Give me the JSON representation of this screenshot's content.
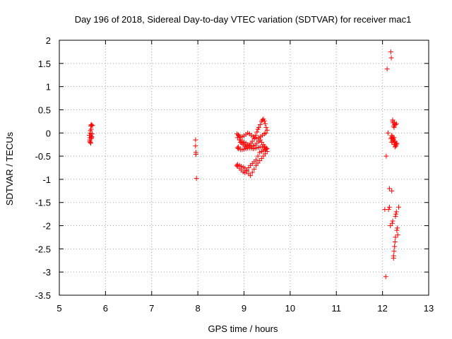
{
  "chart_data": {
    "type": "scatter",
    "title": "Day 196 of 2018, Sidereal Day-to-day VTEC variation (SDTVAR) for receiver mac1",
    "xlabel": "GPS time / hours",
    "ylabel": "SDTVAR / TECUs",
    "xlim": [
      5,
      13
    ],
    "ylim": [
      -3.5,
      2
    ],
    "grid": true,
    "marker": "+",
    "xticks": [
      5,
      6,
      7,
      8,
      9,
      10,
      11,
      12,
      13
    ],
    "yticks": [
      2,
      1.5,
      1,
      0.5,
      0,
      -0.5,
      -1,
      -1.5,
      -2,
      -2.5,
      -3,
      -3.5
    ],
    "xtick_labels": [
      "5",
      "6",
      "7",
      "8",
      "9",
      "10",
      "11",
      "12",
      "13"
    ],
    "ytick_labels": [
      "2",
      "1.5",
      "1",
      "0.5",
      "0",
      "-0.5",
      "-1",
      "-1.5",
      "-2",
      "-2.5",
      "-3",
      "-3.5"
    ],
    "series": [
      {
        "name": "SDTVAR",
        "color": "#ff0000",
        "x": [
          5.65,
          5.66,
          5.66,
          5.67,
          5.67,
          5.68,
          5.68,
          5.69,
          5.69,
          5.7,
          5.7,
          5.71,
          5.72,
          5.66,
          5.68,
          5.7,
          5.67,
          5.69,
          7.95,
          7.95,
          7.96,
          7.96,
          7.97,
          8.85,
          8.86,
          8.88,
          8.9,
          8.92,
          8.95,
          8.98,
          9.02,
          9.05,
          9.08,
          9.12,
          9.15,
          9.18,
          9.22,
          9.25,
          9.28,
          9.3,
          9.32,
          9.35,
          9.38,
          9.4,
          9.42,
          9.44,
          9.46,
          9.48,
          9.5,
          9.47,
          9.44,
          9.4,
          9.36,
          9.32,
          9.28,
          9.24,
          9.2,
          9.16,
          9.12,
          9.08,
          9.04,
          9.0,
          8.96,
          8.92,
          8.88,
          8.86,
          8.88,
          8.92,
          8.96,
          9.0,
          9.04,
          9.08,
          9.12,
          9.16,
          9.2,
          9.24,
          9.28,
          9.32,
          9.36,
          9.4,
          9.44,
          9.48,
          9.5,
          9.46,
          9.42,
          9.38,
          9.34,
          9.3,
          9.26,
          9.22,
          9.18,
          9.14,
          9.1,
          9.06,
          9.02,
          8.98,
          8.94,
          8.9,
          8.86,
          8.84,
          8.86,
          8.9,
          8.94,
          8.98,
          9.02,
          9.06,
          9.1,
          9.14,
          9.18,
          9.22,
          9.26,
          9.3,
          9.34,
          9.38,
          9.42,
          9.46,
          9.5,
          9.48,
          9.45,
          9.42,
          9.38,
          9.35,
          9.32,
          9.28,
          9.24,
          9.2,
          9.16,
          9.12,
          9.08,
          9.04,
          9.0,
          8.96,
          8.92,
          8.9,
          8.88,
          12.05,
          12.07,
          12.08,
          12.1,
          12.12,
          12.13,
          12.15,
          12.15,
          12.17,
          12.18,
          12.19,
          12.2,
          12.21,
          12.22,
          12.22,
          12.23,
          12.24,
          12.24,
          12.25,
          12.25,
          12.26,
          12.26,
          12.27,
          12.28,
          12.28,
          12.29,
          12.3,
          12.3,
          12.31,
          12.32,
          12.33,
          12.35,
          12.2,
          12.2,
          12.18,
          12.22,
          12.24,
          12.26,
          12.28,
          12.3,
          12.21,
          12.23,
          12.25,
          12.27,
          12.29,
          12.31,
          12.24,
          12.22,
          12.26,
          12.28,
          12.2,
          12.23,
          12.25,
          12.27
        ],
        "y": [
          -0.05,
          -0.1,
          -0.15,
          -0.2,
          0.0,
          -0.05,
          0.15,
          0.18,
          -0.12,
          -0.08,
          0.17,
          -0.02,
          0.16,
          -0.18,
          -0.22,
          -0.1,
          0.05,
          0.08,
          -0.15,
          -0.28,
          -0.42,
          -0.46,
          -0.98,
          -0.02,
          -0.1,
          -0.05,
          -0.15,
          -0.2,
          -0.22,
          -0.25,
          -0.28,
          -0.3,
          -0.28,
          -0.26,
          -0.22,
          -0.18,
          -0.12,
          -0.05,
          0.02,
          0.08,
          0.12,
          0.18,
          0.25,
          0.28,
          0.3,
          0.26,
          0.2,
          0.12,
          0.06,
          0.0,
          -0.02,
          -0.05,
          -0.08,
          -0.1,
          -0.12,
          -0.1,
          -0.08,
          -0.05,
          -0.02,
          0.0,
          -0.03,
          -0.06,
          -0.08,
          -0.1,
          -0.3,
          -0.32,
          -0.34,
          -0.36,
          -0.36,
          -0.35,
          -0.34,
          -0.33,
          -0.32,
          -0.33,
          -0.34,
          -0.33,
          -0.32,
          -0.31,
          -0.3,
          -0.3,
          -0.31,
          -0.32,
          -0.34,
          -0.36,
          -0.38,
          -0.4,
          -0.42,
          -0.5,
          -0.58,
          -0.62,
          -0.66,
          -0.7,
          -0.75,
          -0.82,
          -0.86,
          -0.84,
          -0.8,
          -0.76,
          -0.72,
          -0.7,
          -0.68,
          -0.7,
          -0.72,
          -0.74,
          -0.76,
          -0.8,
          -0.88,
          -0.92,
          -0.85,
          -0.78,
          -0.7,
          -0.65,
          -0.6,
          -0.55,
          -0.5,
          -0.45,
          -0.4,
          -0.35,
          -0.3,
          -0.25,
          -0.2,
          -0.15,
          -0.18,
          -0.22,
          -0.26,
          -0.28,
          -0.3,
          -0.28,
          -0.25,
          -0.22,
          -0.2,
          -0.18,
          -0.15,
          -0.08,
          -0.04,
          -1.65,
          -3.1,
          -0.5,
          1.38,
          -0.0,
          -1.65,
          -1.6,
          -1.2,
          -2.0,
          1.75,
          1.62,
          -1.25,
          -1.95,
          0.28,
          -1.9,
          0.22,
          -2.7,
          -2.65,
          0.12,
          -2.55,
          -2.45,
          0.18,
          -2.35,
          -2.25,
          -1.8,
          -1.75,
          0.2,
          -1.7,
          -2.1,
          -2.05,
          -2.2,
          -1.6,
          -0.05,
          -0.1,
          -0.12,
          -0.18,
          -0.15,
          -0.2,
          -0.25,
          -0.22,
          -0.08,
          -0.12,
          -0.25,
          -0.3,
          -0.28,
          -0.24,
          0.15,
          0.25,
          0.22,
          0.18,
          -0.2,
          -0.15,
          -0.1,
          -0.18
        ]
      }
    ]
  }
}
